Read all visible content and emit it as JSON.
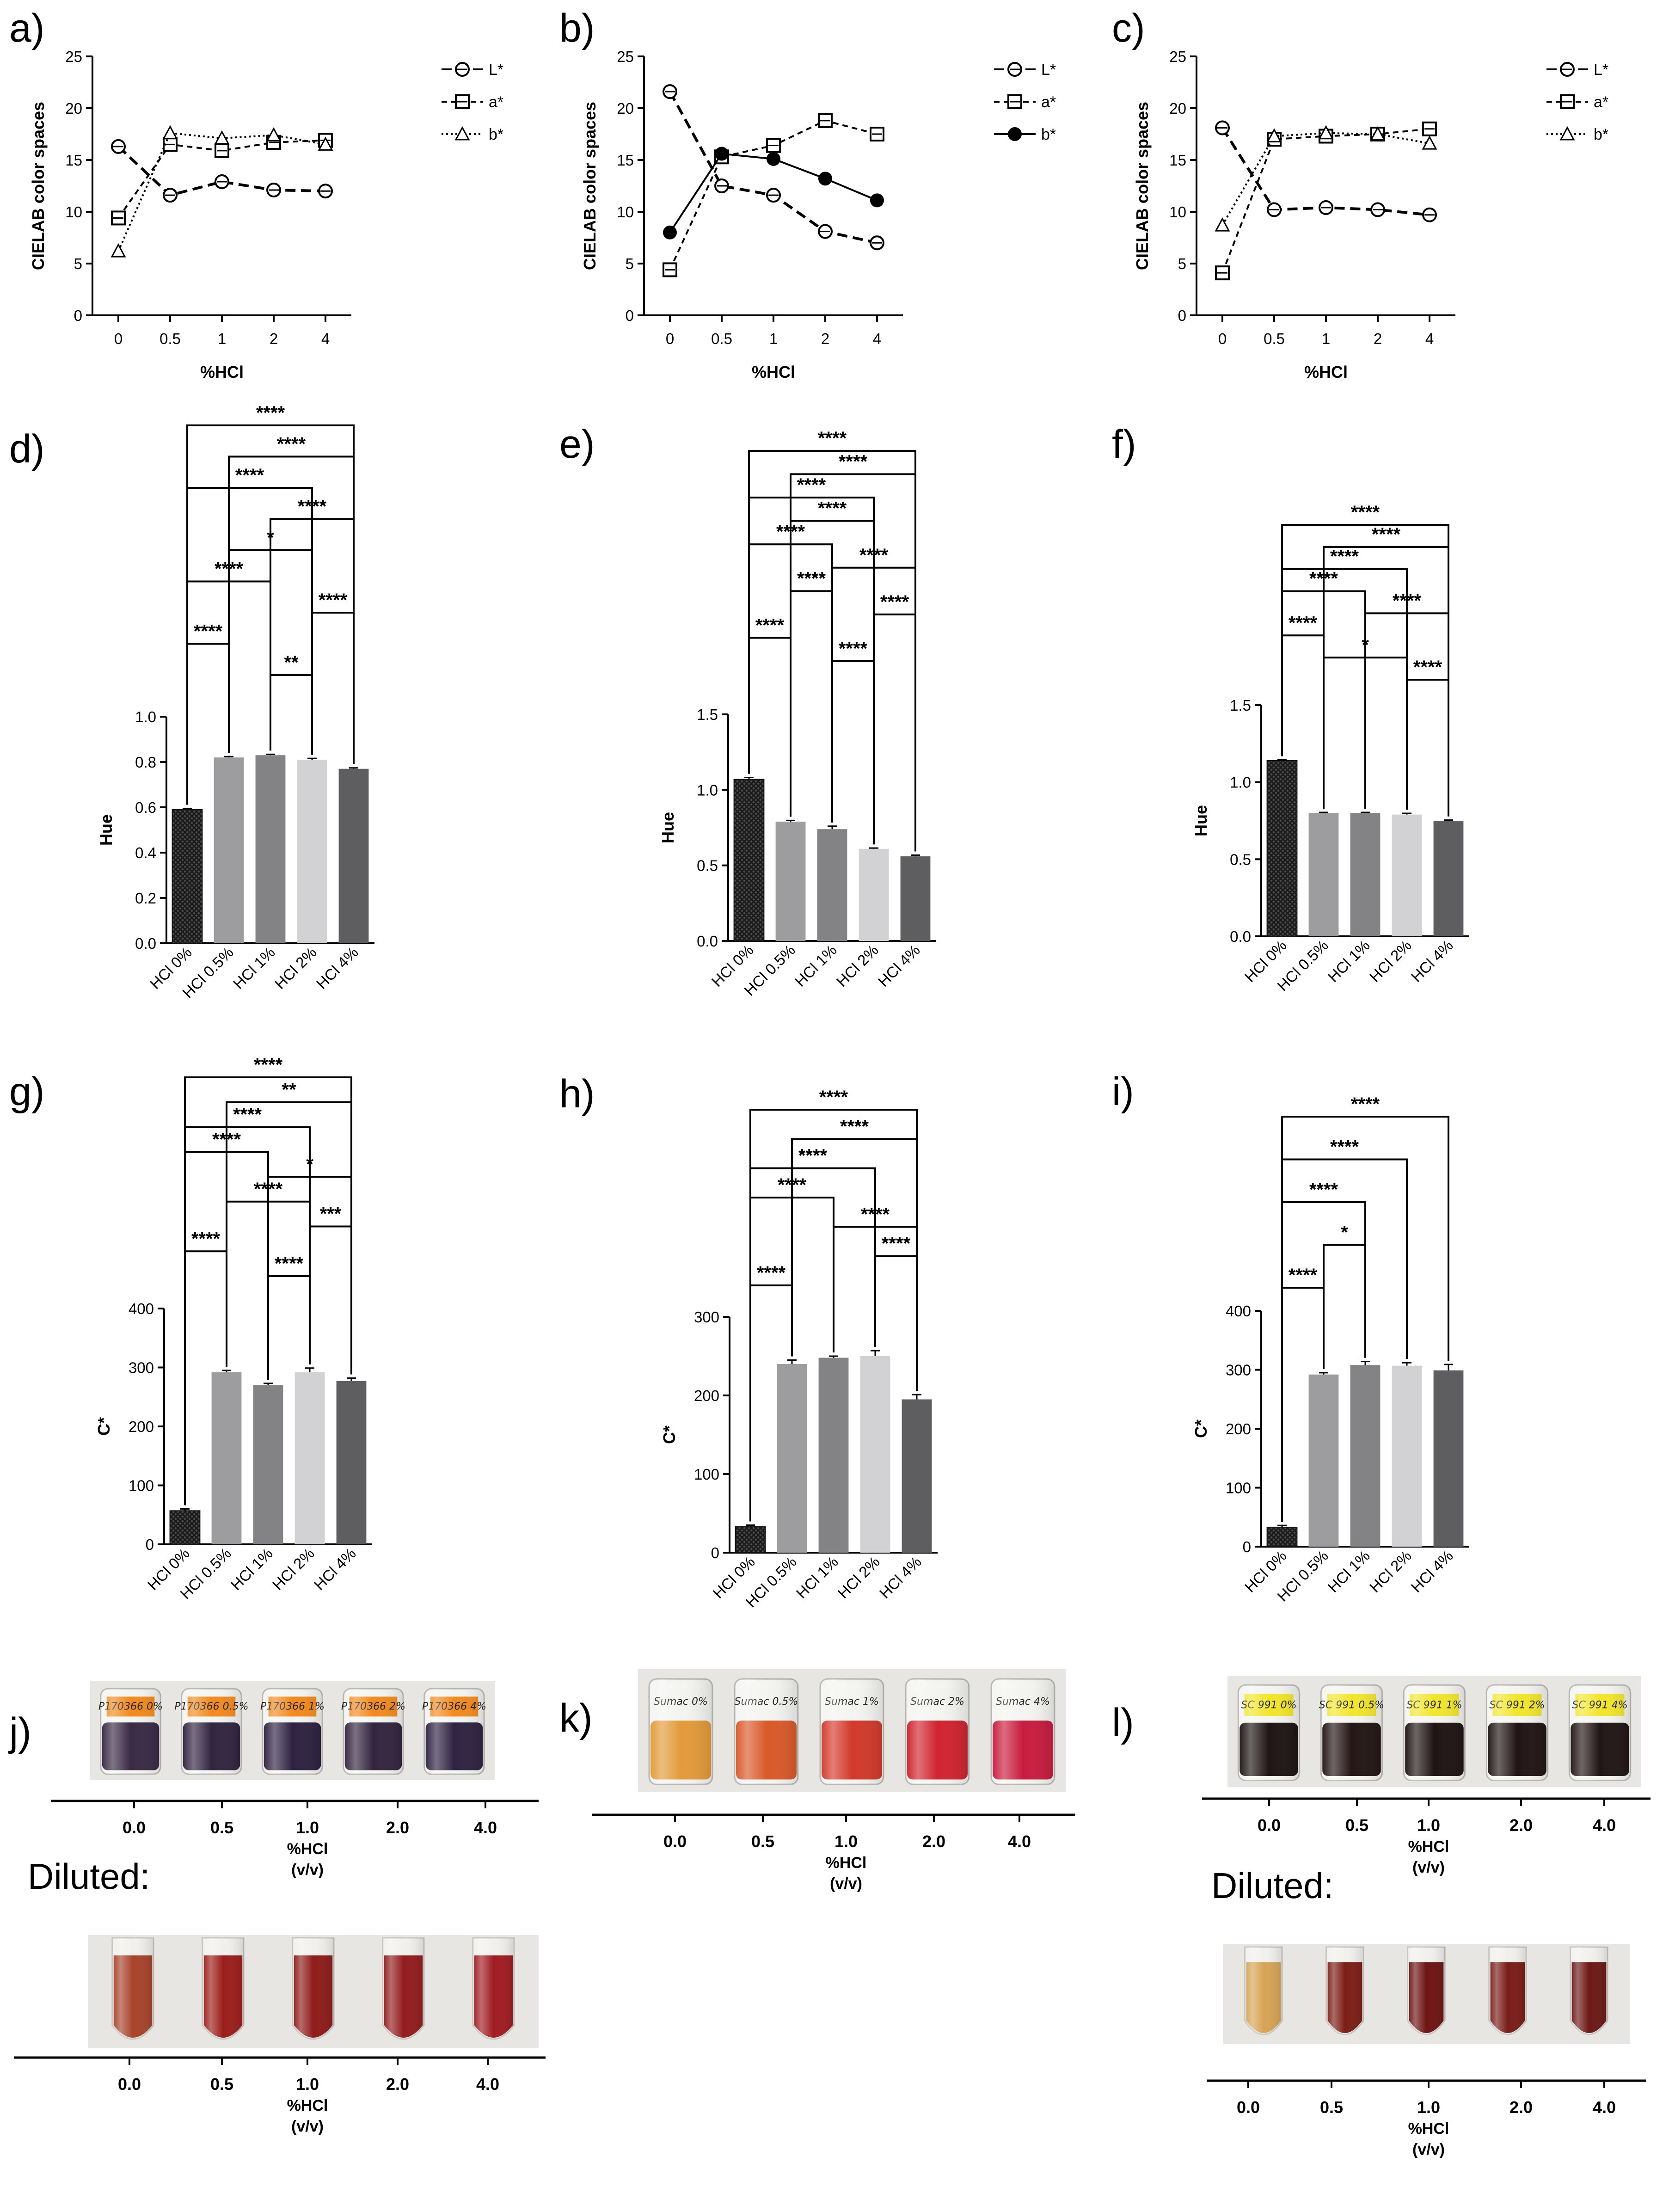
{
  "chart_data": [
    {
      "id": "a",
      "type": "line",
      "panel_label": "a)",
      "x": [
        "0",
        "0.5",
        "1",
        "2",
        "4"
      ],
      "xlabel": "%HCl",
      "ylabel": "CIELAB color spaces",
      "ylim": [
        0,
        25
      ],
      "yticks": [
        "0",
        "5",
        "10",
        "15",
        "20",
        "25"
      ],
      "series": [
        {
          "name": "L*",
          "marker": "circle-open",
          "dash": "long",
          "values": [
            16.3,
            11.6,
            12.9,
            12.1,
            12.0
          ]
        },
        {
          "name": "a*",
          "marker": "square-open",
          "dash": "medium",
          "values": [
            9.4,
            16.5,
            15.9,
            16.7,
            16.9
          ]
        },
        {
          "name": "b*",
          "marker": "triangle-open",
          "dash": "dotted",
          "values": [
            6.2,
            17.6,
            17.1,
            17.4,
            16.5
          ]
        }
      ],
      "legend_position": "right",
      "grid": false
    },
    {
      "id": "b",
      "type": "line",
      "panel_label": "b)",
      "x": [
        "0",
        "0.5",
        "1",
        "2",
        "4"
      ],
      "xlabel": "%HCl",
      "ylabel": "CIELAB color spaces",
      "ylim": [
        0,
        25
      ],
      "yticks": [
        "0",
        "5",
        "10",
        "15",
        "20",
        "25"
      ],
      "series": [
        {
          "name": "L*",
          "marker": "circle-open",
          "dash": "long",
          "values": [
            21.6,
            12.5,
            11.6,
            8.1,
            7.0
          ]
        },
        {
          "name": "a*",
          "marker": "square-open",
          "dash": "medium",
          "values": [
            4.4,
            15.3,
            16.4,
            18.8,
            17.5
          ]
        },
        {
          "name": "b*",
          "marker": "circle-filled",
          "dash": "solid",
          "values": [
            8.0,
            15.6,
            15.1,
            13.2,
            11.1
          ]
        }
      ],
      "legend_position": "right",
      "grid": false
    },
    {
      "id": "c",
      "type": "line",
      "panel_label": "c)",
      "x": [
        "0",
        "0.5",
        "1",
        "2",
        "4"
      ],
      "xlabel": "%HCl",
      "ylabel": "CIELAB color spaces",
      "ylim": [
        0,
        25
      ],
      "yticks": [
        "0",
        "5",
        "10",
        "15",
        "20",
        "25"
      ],
      "series": [
        {
          "name": "L*",
          "marker": "circle-open",
          "dash": "long",
          "values": [
            18.1,
            10.2,
            10.4,
            10.2,
            9.7
          ]
        },
        {
          "name": "a*",
          "marker": "square-open",
          "dash": "medium",
          "values": [
            4.1,
            17.0,
            17.3,
            17.5,
            18.0
          ]
        },
        {
          "name": "b*",
          "marker": "triangle-open",
          "dash": "dotted",
          "values": [
            8.7,
            17.3,
            17.6,
            17.5,
            16.6
          ]
        }
      ],
      "legend_position": "right",
      "grid": false
    },
    {
      "id": "d",
      "type": "bar",
      "panel_label": "d)",
      "categories": [
        "HCl 0%",
        "HCl 0.5%",
        "HCl 1%",
        "HCl 2%",
        "HCl 4%"
      ],
      "values": [
        0.59,
        0.82,
        0.83,
        0.81,
        0.77
      ],
      "errors": [
        0.005,
        0.004,
        0.004,
        0.006,
        0.004
      ],
      "ylabel": "Hue",
      "ylim": [
        0,
        1.0
      ],
      "yticks": [
        "0.0",
        "0.2",
        "0.4",
        "0.6",
        "0.8",
        "1.0"
      ],
      "significance": [
        {
          "from": 0,
          "to": 4,
          "label": "****"
        },
        {
          "from": 1,
          "to": 4,
          "label": "****"
        },
        {
          "from": 0,
          "to": 3,
          "label": "****"
        },
        {
          "from": 2,
          "to": 4,
          "label": "****"
        },
        {
          "from": 1,
          "to": 3,
          "label": "*"
        },
        {
          "from": 0,
          "to": 2,
          "label": "****"
        },
        {
          "from": 3,
          "to": 4,
          "label": "****"
        },
        {
          "from": 0,
          "to": 1,
          "label": "****"
        },
        {
          "from": 2,
          "to": 3,
          "label": "**"
        }
      ]
    },
    {
      "id": "e",
      "type": "bar",
      "panel_label": "e)",
      "categories": [
        "HCl 0%",
        "HCl 0.5%",
        "HCl 1%",
        "HCl 2%",
        "HCl 4%"
      ],
      "values": [
        1.07,
        0.79,
        0.74,
        0.61,
        0.56
      ],
      "errors": [
        0.012,
        0.008,
        0.02,
        0.005,
        0.008
      ],
      "ylabel": "Hue",
      "ylim": [
        0,
        1.5
      ],
      "yticks": [
        "0.0",
        "0.5",
        "1.0",
        "1.5"
      ],
      "significance": [
        {
          "from": 0,
          "to": 4,
          "label": "****"
        },
        {
          "from": 1,
          "to": 4,
          "label": "****"
        },
        {
          "from": 0,
          "to": 3,
          "label": "****"
        },
        {
          "from": 1,
          "to": 3,
          "label": "****"
        },
        {
          "from": 0,
          "to": 2,
          "label": "****"
        },
        {
          "from": 2,
          "to": 4,
          "label": "****"
        },
        {
          "from": 1,
          "to": 2,
          "label": "****"
        },
        {
          "from": 3,
          "to": 4,
          "label": "****"
        },
        {
          "from": 0,
          "to": 1,
          "label": "****"
        },
        {
          "from": 2,
          "to": 3,
          "label": "****"
        }
      ]
    },
    {
      "id": "f",
      "type": "bar",
      "panel_label": "f)",
      "categories": [
        "HCl 0%",
        "HCl 0.5%",
        "HCl 1%",
        "HCl 2%",
        "HCl 4%"
      ],
      "values": [
        1.14,
        0.8,
        0.8,
        0.79,
        0.75
      ],
      "errors": [
        0.005,
        0.004,
        0.004,
        0.008,
        0.004
      ],
      "ylabel": "Hue",
      "ylim": [
        0,
        1.5
      ],
      "yticks": [
        "0.0",
        "0.5",
        "1.0",
        "1.5"
      ],
      "significance": [
        {
          "from": 0,
          "to": 4,
          "label": "****"
        },
        {
          "from": 1,
          "to": 4,
          "label": "****"
        },
        {
          "from": 0,
          "to": 3,
          "label": "****"
        },
        {
          "from": 0,
          "to": 2,
          "label": "****"
        },
        {
          "from": 2,
          "to": 4,
          "label": "****"
        },
        {
          "from": 0,
          "to": 1,
          "label": "****"
        },
        {
          "from": 1,
          "to": 3,
          "label": "*"
        },
        {
          "from": 3,
          "to": 4,
          "label": "****"
        }
      ]
    },
    {
      "id": "g",
      "type": "bar",
      "panel_label": "g)",
      "categories": [
        "HCl 0%",
        "HCl 0.5%",
        "HCl 1%",
        "HCl 2%",
        "HCl 4%"
      ],
      "values": [
        57,
        292,
        270,
        292,
        277
      ],
      "errors": [
        3,
        3,
        3,
        7,
        5
      ],
      "ylabel": "C*",
      "ylim": [
        0,
        400
      ],
      "yticks": [
        "0",
        "100",
        "200",
        "300",
        "400"
      ],
      "significance": [
        {
          "from": 0,
          "to": 4,
          "label": "****"
        },
        {
          "from": 1,
          "to": 4,
          "label": "**"
        },
        {
          "from": 0,
          "to": 3,
          "label": "****"
        },
        {
          "from": 0,
          "to": 2,
          "label": "****"
        },
        {
          "from": 2,
          "to": 4,
          "label": "*"
        },
        {
          "from": 1,
          "to": 3,
          "label": "****"
        },
        {
          "from": 3,
          "to": 4,
          "label": "***"
        },
        {
          "from": 0,
          "to": 1,
          "label": "****"
        },
        {
          "from": 2,
          "to": 3,
          "label": "****"
        }
      ]
    },
    {
      "id": "h",
      "type": "bar",
      "panel_label": "h)",
      "categories": [
        "HCl 0%",
        "HCl 0.5%",
        "HCl 1%",
        "HCl 2%",
        "HCl 4%"
      ],
      "values": [
        33,
        240,
        248,
        250,
        195
      ],
      "errors": [
        2,
        5,
        2,
        7,
        6
      ],
      "ylabel": "C*",
      "ylim": [
        0,
        300
      ],
      "yticks": [
        "0",
        "100",
        "200",
        "300"
      ],
      "significance": [
        {
          "from": 0,
          "to": 4,
          "label": "****"
        },
        {
          "from": 1,
          "to": 4,
          "label": "****"
        },
        {
          "from": 0,
          "to": 3,
          "label": "****"
        },
        {
          "from": 0,
          "to": 2,
          "label": "****"
        },
        {
          "from": 2,
          "to": 4,
          "label": "****"
        },
        {
          "from": 3,
          "to": 4,
          "label": "****"
        },
        {
          "from": 0,
          "to": 1,
          "label": "****"
        }
      ]
    },
    {
      "id": "i",
      "type": "bar",
      "panel_label": "i)",
      "categories": [
        "HCl 0%",
        "HCl 0.5%",
        "HCl 1%",
        "HCl 2%",
        "HCl 4%"
      ],
      "values": [
        33,
        292,
        308,
        307,
        299
      ],
      "errors": [
        3,
        3,
        6,
        5,
        10
      ],
      "ylabel": "C*",
      "ylim": [
        0,
        400
      ],
      "yticks": [
        "0",
        "100",
        "200",
        "300",
        "400"
      ],
      "significance": [
        {
          "from": 0,
          "to": 4,
          "label": "****"
        },
        {
          "from": 0,
          "to": 3,
          "label": "****"
        },
        {
          "from": 0,
          "to": 2,
          "label": "****"
        },
        {
          "from": 1,
          "to": 2,
          "label": "*"
        },
        {
          "from": 0,
          "to": 1,
          "label": "****"
        }
      ]
    }
  ],
  "photos": [
    {
      "id": "j",
      "panel_label": "j)",
      "ticks": [
        "0.0",
        "0.5",
        "1.0",
        "2.0",
        "4.0"
      ],
      "axis_label": "%HCl",
      "axis_unit": "(v/v)",
      "liquid_colors": [
        "#3a2a45",
        "#322440",
        "#2e2240",
        "#33253f",
        "#2f2341"
      ],
      "label_color": "#f28a1e",
      "vial_labels": [
        "P170366 0%",
        "P170366 0.5%",
        "P170366 1%",
        "P170366 2%",
        "P170366 4%"
      ],
      "diluted": {
        "title": "Diluted:",
        "ticks": [
          "0.0",
          "0.5",
          "1.0",
          "2.0",
          "4.0"
        ],
        "axis_label": "%HCl",
        "axis_unit": "(v/v)",
        "liquid_colors": [
          "#a8432a",
          "#9b1e1a",
          "#8e1c1a",
          "#931c1e",
          "#a01c22"
        ]
      }
    },
    {
      "id": "k",
      "panel_label": "k)",
      "ticks": [
        "0.0",
        "0.5",
        "1.0",
        "2.0",
        "4.0"
      ],
      "axis_label": "%HCl",
      "axis_unit": "(v/v)",
      "liquid_colors": [
        "#e39a3a",
        "#d95a2a",
        "#d23a2a",
        "#d02430",
        "#c81c3e"
      ],
      "label_color": "#f3f3ef",
      "vial_labels": [
        "Sumac 0%",
        "Sumac 0.5%",
        "Sumac 1%",
        "Sumac 2%",
        "Sumac 4%"
      ],
      "diluted": null
    },
    {
      "id": "l",
      "panel_label": "l)",
      "ticks": [
        "0.0",
        "0.5",
        "1.0",
        "2.0",
        "4.0"
      ],
      "axis_label": "%HCl",
      "axis_unit": "(v/v)",
      "liquid_colors": [
        "#1e1514",
        "#231615",
        "#1f1413",
        "#201514",
        "#211615"
      ],
      "label_color": "#f2e62a",
      "vial_labels": [
        "SC 991 0%",
        "SC 991 0.5%",
        "SC 991 1%",
        "SC 991 2%",
        "SC 991 4%"
      ],
      "diluted": {
        "title": "Diluted:",
        "ticks": [
          "0.0",
          "0.5",
          "1.0",
          "2.0",
          "4.0"
        ],
        "axis_label": "%HCl",
        "axis_unit": "(v/v)",
        "liquid_colors": [
          "#d7a455",
          "#7c1e16",
          "#6e1414",
          "#7a1d18",
          "#6c1916"
        ]
      }
    }
  ],
  "colors": {
    "bar_fills": [
      "#2b2b2b",
      "#9d9d9f",
      "#838385",
      "#d2d2d4",
      "#5e5e60"
    ],
    "hatch_bar": "#2b2b2b",
    "ink": "#000000"
  }
}
